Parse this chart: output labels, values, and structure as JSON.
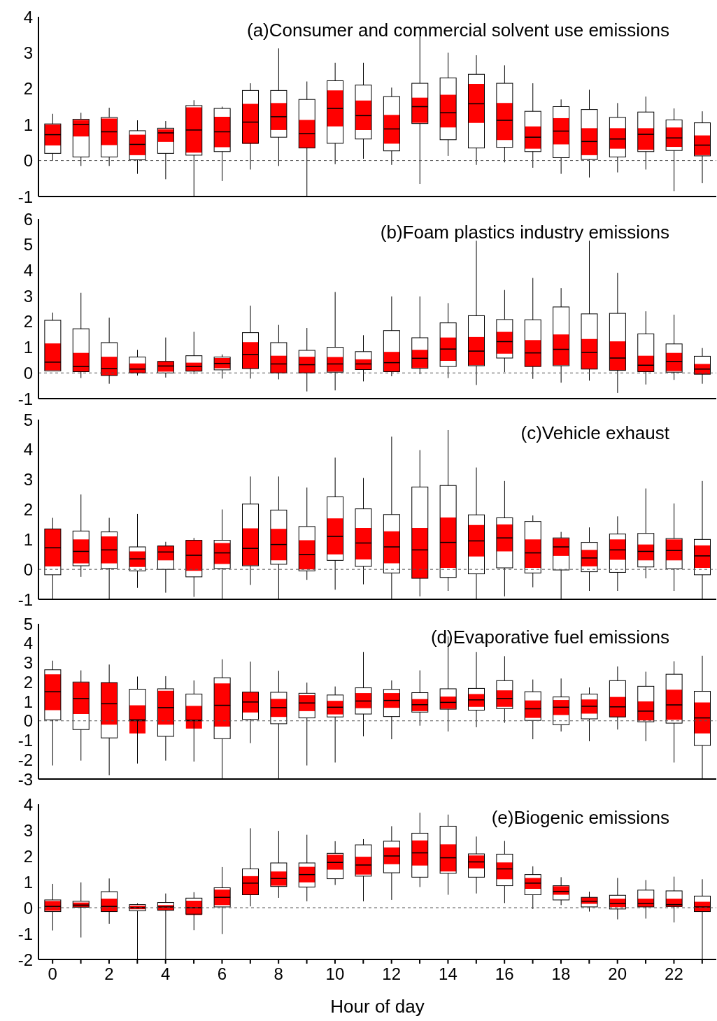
{
  "chart_data": [
    {
      "type": "box",
      "title": "(a)Consumer and commercial solvent use emissions",
      "categories": [
        "0",
        null,
        "2",
        null,
        "4",
        null,
        "6",
        null,
        "8",
        null,
        "10",
        null,
        "12",
        null,
        "14",
        null,
        "16",
        null,
        "18",
        null,
        "20",
        null,
        "22",
        null
      ],
      "ylim": [
        -1,
        4
      ],
      "yticks": [
        -1,
        0,
        1,
        2,
        3,
        4
      ],
      "tick_labels": "y",
      "ref_lines": [
        {
          "axis": "y",
          "value": 0,
          "line_style": "dashed"
        }
      ],
      "series": [
        {
          "type": "box",
          "boxes": [
            {
              "low": 0,
              "q1": 0.2,
              "median": 0.72,
              "q3": 1.02,
              "high": 1.3
            },
            {
              "low": -0.15,
              "q1": 0.1,
              "median": 1,
              "q3": 1.15,
              "high": 1.33
            },
            {
              "low": -0.15,
              "q1": 0.1,
              "median": 0.8,
              "q3": 1.2,
              "high": 1.47
            },
            {
              "low": -0.37,
              "q1": 0.02,
              "median": 0.45,
              "q3": 0.83,
              "high": 1.12
            },
            {
              "low": -0.52,
              "q1": 0.2,
              "median": 0.77,
              "q3": 0.9,
              "high": 1.1
            },
            {
              "low": -1,
              "q1": 0.15,
              "median": 0.85,
              "q3": 1.53,
              "high": 1.68
            },
            {
              "low": -0.57,
              "q1": 0.25,
              "median": 0.8,
              "q3": 1.45,
              "high": 1.5
            },
            {
              "low": -0.25,
              "q1": 0.48,
              "median": 1.07,
              "q3": 1.95,
              "high": 2.15
            },
            {
              "low": -0.15,
              "q1": 0.65,
              "median": 1.22,
              "q3": 1.95,
              "high": 3.12
            },
            {
              "low": -1,
              "q1": 0.35,
              "median": 0.75,
              "q3": 1.7,
              "high": 2.2
            },
            {
              "low": -0.1,
              "q1": 0.48,
              "median": 1.45,
              "q3": 2.22,
              "high": 2.72
            },
            {
              "low": 0.05,
              "q1": 0.6,
              "median": 1.25,
              "q3": 2.1,
              "high": 2.72
            },
            {
              "low": -0.12,
              "q1": 0.27,
              "median": 0.88,
              "q3": 1.78,
              "high": 2.03
            },
            {
              "low": -0.65,
              "q1": 1.03,
              "median": 1.5,
              "q3": 2.15,
              "high": 3.45
            },
            {
              "low": 0.13,
              "q1": 0.58,
              "median": 1.33,
              "q3": 2.3,
              "high": 3
            },
            {
              "low": -0.12,
              "q1": 0.35,
              "median": 1.58,
              "q3": 2.4,
              "high": 2.93
            },
            {
              "low": -0.05,
              "q1": 0.37,
              "median": 1.12,
              "q3": 2.15,
              "high": 2.65
            },
            {
              "low": -0.2,
              "q1": 0.25,
              "median": 0.65,
              "q3": 1.37,
              "high": 2.15
            },
            {
              "low": -0.37,
              "q1": 0.08,
              "median": 0.82,
              "q3": 1.5,
              "high": 1.7
            },
            {
              "low": -0.47,
              "q1": 0.03,
              "median": 0.53,
              "q3": 1.42,
              "high": 1.97
            },
            {
              "low": -0.33,
              "q1": 0.1,
              "median": 0.6,
              "q3": 1.2,
              "high": 1.6
            },
            {
              "low": -0.25,
              "q1": 0.25,
              "median": 0.73,
              "q3": 1.35,
              "high": 1.78
            },
            {
              "low": -0.85,
              "q1": 0.28,
              "median": 0.63,
              "q3": 1.13,
              "high": 1.45
            },
            {
              "low": -0.63,
              "q1": 0.13,
              "median": 0.43,
              "q3": 1.05,
              "high": 1.37
            }
          ]
        },
        {
          "type": "bar",
          "color": "#ff0000",
          "base": [
            0.42,
            0.67,
            0.43,
            0.15,
            0.52,
            0.22,
            0.37,
            0.47,
            0.85,
            0.35,
            0.95,
            0.85,
            0.47,
            1.05,
            0.92,
            1.05,
            0.57,
            0.33,
            0.45,
            0.15,
            0.33,
            0.3,
            0.38,
            0.15
          ],
          "values": [
            0.58,
            0.46,
            0.74,
            0.57,
            0.35,
            1.26,
            0.85,
            1.11,
            0.75,
            0.78,
            1.0,
            0.82,
            0.8,
            0.7,
            0.91,
            1.08,
            1.03,
            0.62,
            0.73,
            0.75,
            0.57,
            0.6,
            0.54,
            0.55
          ]
        }
      ]
    },
    {
      "type": "box",
      "title": "(b)Foam plastics industry emissions",
      "categories": [
        "0",
        null,
        "2",
        null,
        "4",
        null,
        "6",
        null,
        "8",
        null,
        "10",
        null,
        "12",
        null,
        "14",
        null,
        "16",
        null,
        "18",
        null,
        "20",
        null,
        "22",
        null
      ],
      "ylim": [
        -1,
        6
      ],
      "yticks": [
        -1,
        0,
        1,
        2,
        3,
        4,
        5,
        6
      ],
      "tick_labels": "y",
      "ref_lines": [
        {
          "axis": "y",
          "value": 0,
          "line_style": "dashed"
        }
      ],
      "series": [
        {
          "type": "box",
          "boxes": [
            {
              "low": 0.08,
              "q1": 0.08,
              "median": 0.42,
              "q3": 2.05,
              "high": 2.35
            },
            {
              "low": -0.2,
              "q1": 0.05,
              "median": 0.25,
              "q3": 1.72,
              "high": 3.12
            },
            {
              "low": -0.42,
              "q1": -0.1,
              "median": 0.17,
              "q3": 1.18,
              "high": 2.15
            },
            {
              "low": -0.1,
              "q1": 0,
              "median": 0.15,
              "q3": 0.62,
              "high": 0.9
            },
            {
              "low": -0.18,
              "q1": 0,
              "median": 0.27,
              "q3": 0.45,
              "high": 1.38
            },
            {
              "low": -0.05,
              "q1": 0.07,
              "median": 0.25,
              "q3": 0.67,
              "high": 1.6
            },
            {
              "low": -0.22,
              "q1": 0.12,
              "median": 0.37,
              "q3": 0.62,
              "high": 0.72
            },
            {
              "low": -0.22,
              "q1": 0.17,
              "median": 0.72,
              "q3": 1.57,
              "high": 2.62
            },
            {
              "low": -0.25,
              "q1": 0,
              "median": 0.35,
              "q3": 1.18,
              "high": 1.87
            },
            {
              "low": -0.72,
              "q1": 0,
              "median": 0.32,
              "q3": 0.88,
              "high": 1.75
            },
            {
              "low": -0.68,
              "q1": 0.03,
              "median": 0.35,
              "q3": 1,
              "high": 3.15
            },
            {
              "low": -0.33,
              "q1": 0.13,
              "median": 0.35,
              "q3": 0.83,
              "high": 1.47
            },
            {
              "low": -0.13,
              "q1": 0.05,
              "median": 0.4,
              "q3": 1.65,
              "high": 2.98
            },
            {
              "low": -0.05,
              "q1": 0.18,
              "median": 0.57,
              "q3": 1.37,
              "high": 2.98
            },
            {
              "low": -0.2,
              "q1": 0.25,
              "median": 0.93,
              "q3": 1.95,
              "high": 2.72
            },
            {
              "low": -0.47,
              "q1": 0.28,
              "median": 0.85,
              "q3": 2.23,
              "high": 5.15
            },
            {
              "low": 0.03,
              "q1": 0.58,
              "median": 1.22,
              "q3": 2.08,
              "high": 3.23
            },
            {
              "low": -0.23,
              "q1": 0.25,
              "median": 0.78,
              "q3": 2.07,
              "high": 3.7
            },
            {
              "low": -0.38,
              "q1": 0.28,
              "median": 0.92,
              "q3": 2.57,
              "high": 3.3
            },
            {
              "low": -0.3,
              "q1": 0.15,
              "median": 0.8,
              "q3": 2.3,
              "high": 5.15
            },
            {
              "low": -0.78,
              "q1": 0.1,
              "median": 0.58,
              "q3": 2.32,
              "high": 3.9
            },
            {
              "low": -0.45,
              "q1": 0.05,
              "median": 0.3,
              "q3": 1.52,
              "high": 2.4
            },
            {
              "low": -0.27,
              "q1": 0.03,
              "median": 0.45,
              "q3": 1.13,
              "high": 2.27
            },
            {
              "low": -0.42,
              "q1": -0.05,
              "median": 0.15,
              "q3": 0.65,
              "high": 0.97
            }
          ]
        },
        {
          "type": "bar",
          "color": "#ff0000",
          "base": [
            0.1,
            0.05,
            -0.1,
            0,
            0.05,
            0.07,
            0.18,
            0.17,
            0,
            0,
            0.05,
            0.13,
            0.05,
            0.2,
            0.47,
            0.3,
            0.75,
            0.25,
            0.3,
            0.15,
            0.1,
            0.05,
            0.07,
            -0.05
          ],
          "values": [
            1.05,
            0.73,
            0.73,
            0.37,
            0.4,
            0.33,
            0.4,
            1.03,
            0.67,
            0.63,
            0.57,
            0.4,
            0.77,
            0.7,
            0.91,
            1.1,
            0.85,
            1.03,
            1.2,
            1.17,
            1.13,
            0.62,
            0.71,
            0.4
          ]
        }
      ]
    },
    {
      "type": "box",
      "title": "(c)Vehicle exhaust",
      "categories": [
        "0",
        null,
        "2",
        null,
        "4",
        null,
        "6",
        null,
        "8",
        null,
        "10",
        null,
        "12",
        null,
        "14",
        null,
        "16",
        null,
        "18",
        null,
        "20",
        null,
        "22",
        null
      ],
      "ylim": [
        -1,
        5
      ],
      "yticks": [
        -1,
        0,
        1,
        2,
        3,
        4,
        5
      ],
      "tick_labels": "y",
      "ref_lines": [
        {
          "axis": "y",
          "value": 0,
          "line_style": "dashed"
        }
      ],
      "series": [
        {
          "type": "box",
          "boxes": [
            {
              "low": -1,
              "q1": -0.18,
              "median": 0.72,
              "q3": 1.35,
              "high": 1.72
            },
            {
              "low": -0.25,
              "q1": 0.12,
              "median": 0.6,
              "q3": 1.28,
              "high": 2.5
            },
            {
              "low": -1,
              "q1": 0.03,
              "median": 0.65,
              "q3": 1.25,
              "high": 1.72
            },
            {
              "low": -0.62,
              "q1": -0.05,
              "median": 0.35,
              "q3": 0.75,
              "high": 1.85
            },
            {
              "low": -0.78,
              "q1": 0,
              "median": 0.58,
              "q3": 0.78,
              "high": 0.92
            },
            {
              "low": -0.92,
              "q1": -0.25,
              "median": 0.47,
              "q3": 0.97,
              "high": 1.05
            },
            {
              "low": -1,
              "q1": 0.03,
              "median": 0.55,
              "q3": 0.97,
              "high": 2
            },
            {
              "low": -0.52,
              "q1": 0.12,
              "median": 0.7,
              "q3": 2.18,
              "high": 3.1
            },
            {
              "low": -1,
              "q1": 0.17,
              "median": 0.83,
              "q3": 1.98,
              "high": 3.1
            },
            {
              "low": -0.35,
              "q1": -0.05,
              "median": 0.5,
              "q3": 1.43,
              "high": 2.73
            },
            {
              "low": -0.68,
              "q1": 0.3,
              "median": 1.1,
              "q3": 2.42,
              "high": 3.73
            },
            {
              "low": -0.5,
              "q1": 0.1,
              "median": 0.88,
              "q3": 2.02,
              "high": 3.05
            },
            {
              "low": -1,
              "q1": -0.12,
              "median": 0.75,
              "q3": 1.83,
              "high": 4.43
            },
            {
              "low": -0.9,
              "q1": -0.3,
              "median": 0.65,
              "q3": 2.75,
              "high": 3.98
            },
            {
              "low": -0.72,
              "q1": -0.27,
              "median": 0.9,
              "q3": 2.8,
              "high": 4.65
            },
            {
              "low": -1,
              "q1": -0.15,
              "median": 0.95,
              "q3": 1.82,
              "high": 3.4
            },
            {
              "low": -0.9,
              "q1": 0.05,
              "median": 1.05,
              "q3": 1.72,
              "high": 2.95
            },
            {
              "low": -0.6,
              "q1": -0.12,
              "median": 0.55,
              "q3": 1.6,
              "high": 1.8
            },
            {
              "low": -1,
              "q1": -0.02,
              "median": 0.75,
              "q3": 1.05,
              "high": 1.25
            },
            {
              "low": -0.72,
              "q1": -0.08,
              "median": 0.38,
              "q3": 0.9,
              "high": 1.4
            },
            {
              "low": -0.72,
              "q1": -0.1,
              "median": 0.65,
              "q3": 1.18,
              "high": 1.77
            },
            {
              "low": -0.3,
              "q1": 0.08,
              "median": 0.6,
              "q3": 1.2,
              "high": 2.7
            },
            {
              "low": -0.72,
              "q1": 0.02,
              "median": 0.63,
              "q3": 1.03,
              "high": 2.2
            },
            {
              "low": -1,
              "q1": -0.18,
              "median": 0.45,
              "q3": 1,
              "high": 2.95
            }
          ]
        },
        {
          "type": "bar",
          "color": "#ff0000",
          "base": [
            0.1,
            0.2,
            0.2,
            0.08,
            0.3,
            -0.05,
            0.18,
            0.13,
            0.3,
            0,
            0.5,
            0.33,
            0.2,
            -0.3,
            0.05,
            0.43,
            0.6,
            0.05,
            0.45,
            0.1,
            0.32,
            0.3,
            0.3,
            0.05
          ],
          "values": [
            1.25,
            0.8,
            0.9,
            0.52,
            0.48,
            1.02,
            0.7,
            1.24,
            1.05,
            0.97,
            1.2,
            1.05,
            1.07,
            1.68,
            1.68,
            1.05,
            0.9,
            0.95,
            0.58,
            0.55,
            0.68,
            0.53,
            0.7,
            0.75
          ]
        }
      ]
    },
    {
      "type": "box",
      "title": "(d)Evaporative fuel emissions",
      "categories": [
        "0",
        null,
        "2",
        null,
        "4",
        null,
        "6",
        null,
        "8",
        null,
        "10",
        null,
        "12",
        null,
        "14",
        null,
        "16",
        null,
        "18",
        null,
        "20",
        null,
        "22",
        null
      ],
      "ylim": [
        -3,
        5
      ],
      "yticks": [
        -3,
        -2,
        -1,
        0,
        1,
        2,
        3,
        4,
        5
      ],
      "tick_labels": "y",
      "ref_lines": [
        {
          "axis": "y",
          "value": 0,
          "line_style": "dashed"
        }
      ],
      "series": [
        {
          "type": "box",
          "boxes": [
            {
              "low": -2.3,
              "q1": 0.05,
              "median": 1.5,
              "q3": 2.63,
              "high": 3.1
            },
            {
              "low": -2.05,
              "q1": -0.45,
              "median": 1.15,
              "q3": 2,
              "high": 2.6
            },
            {
              "low": -2.8,
              "q1": -0.88,
              "median": 0.88,
              "q3": 1.97,
              "high": 2.9
            },
            {
              "low": -2.2,
              "q1": 0,
              "median": 0.05,
              "q3": 1.63,
              "high": 2.28
            },
            {
              "low": -2.05,
              "q1": -0.8,
              "median": 0.68,
              "q3": 1.65,
              "high": 2.3
            },
            {
              "low": -2.1,
              "q1": 0,
              "median": 0.03,
              "q3": 1.38,
              "high": 2.08
            },
            {
              "low": -3,
              "q1": -0.92,
              "median": 0.8,
              "q3": 2.22,
              "high": 3.17
            },
            {
              "low": -1.15,
              "q1": 0.07,
              "median": 0.97,
              "q3": 1.48,
              "high": 3.05
            },
            {
              "low": -3,
              "q1": -0.15,
              "median": 0.68,
              "q3": 1.47,
              "high": 2.58
            },
            {
              "low": -2.3,
              "q1": 0.15,
              "median": 0.92,
              "q3": 1.42,
              "high": 1.97
            },
            {
              "low": -2.15,
              "q1": 0.2,
              "median": 0.7,
              "q3": 1.33,
              "high": 1.77
            },
            {
              "low": -0.8,
              "q1": 0.35,
              "median": 1.02,
              "q3": 1.7,
              "high": 3.55
            },
            {
              "low": -0.95,
              "q1": 0.22,
              "median": 1.05,
              "q3": 1.62,
              "high": 2.08
            },
            {
              "low": -0.25,
              "q1": 0.45,
              "median": 0.83,
              "q3": 1.45,
              "high": 2.6
            },
            {
              "low": -0.55,
              "q1": 0.6,
              "median": 0.95,
              "q3": 1.65,
              "high": 4.35
            },
            {
              "low": -0.33,
              "q1": 0.55,
              "median": 1.08,
              "q3": 1.67,
              "high": 3.55
            },
            {
              "low": -0.1,
              "q1": 0.63,
              "median": 1.15,
              "q3": 2.07,
              "high": 3.33
            },
            {
              "low": -0.95,
              "q1": 0.02,
              "median": 0.62,
              "q3": 1.5,
              "high": 2.13
            },
            {
              "low": -0.55,
              "q1": -0.2,
              "median": 0.7,
              "q3": 1.23,
              "high": 2.18
            },
            {
              "low": -1.05,
              "q1": 0.1,
              "median": 0.75,
              "q3": 1.38,
              "high": 1.72
            },
            {
              "low": -0.45,
              "q1": 0.2,
              "median": 0.72,
              "q3": 2.07,
              "high": 2.8
            },
            {
              "low": -1.05,
              "q1": -0.05,
              "median": 0.5,
              "q3": 1.78,
              "high": 2.53
            },
            {
              "low": -2.15,
              "q1": -0.12,
              "median": 0.82,
              "q3": 2.4,
              "high": 3.07
            },
            {
              "low": -3,
              "q1": -1.27,
              "median": 0.15,
              "q3": 1.52,
              "high": 3.35
            }
          ]
        },
        {
          "type": "bar",
          "color": "#ff0000",
          "base": [
            0.55,
            0.35,
            -0.2,
            -0.65,
            -0.2,
            -0.4,
            -0.3,
            0.43,
            0.2,
            0.5,
            0.33,
            0.65,
            0.67,
            0.5,
            0.62,
            0.72,
            0.72,
            0.15,
            0.3,
            0.37,
            0.2,
            0.02,
            0.05,
            -0.65
          ],
          "values": [
            1.85,
            1.62,
            2.17,
            1.45,
            1.75,
            1.17,
            2.23,
            1.04,
            0.93,
            0.82,
            0.7,
            0.78,
            0.76,
            0.62,
            0.63,
            0.66,
            0.85,
            0.9,
            0.77,
            0.73,
            1.03,
            0.98,
            1.55,
            1.6
          ]
        }
      ]
    },
    {
      "type": "box",
      "title": "(e)Biogenic emissions",
      "xlabel": "Hour of day",
      "categories": [
        "0",
        null,
        "2",
        null,
        "4",
        null,
        "6",
        null,
        "8",
        null,
        "10",
        null,
        "12",
        null,
        "14",
        null,
        "16",
        null,
        "18",
        null,
        "20",
        null,
        "22",
        null
      ],
      "ylim": [
        -2,
        4
      ],
      "yticks": [
        -2,
        -1,
        0,
        1,
        2,
        3,
        4
      ],
      "ref_lines": [
        {
          "axis": "y",
          "value": 0,
          "line_style": "dashed"
        }
      ],
      "series": [
        {
          "type": "box",
          "boxes": [
            {
              "low": -0.88,
              "q1": -0.15,
              "median": 0.05,
              "q3": 0.3,
              "high": 0.92
            },
            {
              "low": -1.15,
              "q1": 0.02,
              "median": 0.1,
              "q3": 0.25,
              "high": 0.98
            },
            {
              "low": -0.62,
              "q1": -0.15,
              "median": 0.05,
              "q3": 0.62,
              "high": 1.13
            },
            {
              "low": -2,
              "q1": -0.12,
              "median": 0,
              "q3": 0.12,
              "high": 0.17
            },
            {
              "low": -2,
              "q1": -0.1,
              "median": 0.03,
              "q3": 0.2,
              "high": 0.55
            },
            {
              "low": -0.87,
              "q1": -0.25,
              "median": 0,
              "q3": 0.37,
              "high": 0.6
            },
            {
              "low": -1.02,
              "q1": 0.03,
              "median": 0.4,
              "q3": 0.77,
              "high": 1.57
            },
            {
              "low": 0.05,
              "q1": 0.5,
              "median": 0.95,
              "q3": 1.5,
              "high": 3.07
            },
            {
              "low": 0.38,
              "q1": 0.82,
              "median": 1.13,
              "q3": 1.73,
              "high": 2.97
            },
            {
              "low": 0.25,
              "q1": 0.8,
              "median": 1.28,
              "q3": 1.73,
              "high": 2.82
            },
            {
              "low": 0.88,
              "q1": 1.12,
              "median": 1.75,
              "q3": 2.1,
              "high": 2.57
            },
            {
              "low": 0.25,
              "q1": 1.22,
              "median": 1.65,
              "q3": 2.43,
              "high": 2.65
            },
            {
              "low": 0.3,
              "q1": 1.35,
              "median": 2,
              "q3": 2.57,
              "high": 3.15
            },
            {
              "low": 0.8,
              "q1": 1.18,
              "median": 2.12,
              "q3": 2.88,
              "high": 3.67
            },
            {
              "low": 0.5,
              "q1": 1.33,
              "median": 1.93,
              "q3": 3.15,
              "high": 3.6
            },
            {
              "low": 0.55,
              "q1": 1.18,
              "median": 1.77,
              "q3": 2.08,
              "high": 2.75
            },
            {
              "low": 0.18,
              "q1": 0.85,
              "median": 1.5,
              "q3": 2.07,
              "high": 2.58
            },
            {
              "low": -0.05,
              "q1": 0.5,
              "median": 0.95,
              "q3": 1.28,
              "high": 1.6
            },
            {
              "low": 0.1,
              "q1": 0.3,
              "median": 0.63,
              "q3": 0.85,
              "high": 1.18
            },
            {
              "low": -0.15,
              "q1": 0.03,
              "median": 0.25,
              "q3": 0.4,
              "high": 0.62
            },
            {
              "low": -0.45,
              "q1": -0.05,
              "median": 0.17,
              "q3": 0.48,
              "high": 1.15
            },
            {
              "low": -0.42,
              "q1": 0.03,
              "median": 0.17,
              "q3": 0.68,
              "high": 1.07
            },
            {
              "low": -0.57,
              "q1": 0.05,
              "median": 0.12,
              "q3": 0.65,
              "high": 1.2
            },
            {
              "low": -2,
              "q1": -0.15,
              "median": 0.03,
              "q3": 0.45,
              "high": 1.1
            }
          ]
        },
        {
          "type": "bar",
          "color": "#ff0000",
          "base": [
            -0.12,
            0.02,
            -0.15,
            -0.06,
            -0.1,
            -0.28,
            0.1,
            0.5,
            0.85,
            0.98,
            1.47,
            1.28,
            1.68,
            1.63,
            1.4,
            1.52,
            1.1,
            0.73,
            0.5,
            0.15,
            0.02,
            0.03,
            0.03,
            -0.15
          ],
          "values": [
            0.38,
            0.18,
            0.5,
            0.14,
            0.2,
            0.55,
            0.6,
            0.72,
            0.55,
            0.6,
            0.58,
            0.69,
            0.65,
            0.97,
            1.05,
            0.5,
            0.65,
            0.42,
            0.33,
            0.25,
            0.33,
            0.32,
            0.32,
            0.38
          ]
        }
      ]
    }
  ]
}
